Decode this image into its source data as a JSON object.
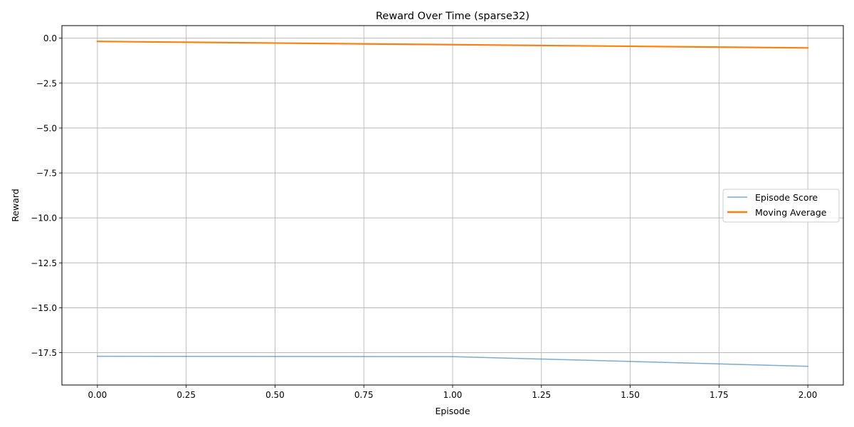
{
  "chart_data": {
    "type": "line",
    "title": "Reward Over Time (sparse32)",
    "xlabel": "Episode",
    "ylabel": "Reward",
    "xlim": [
      -0.1,
      2.1
    ],
    "ylim": [
      -19.3,
      0.7
    ],
    "x_ticks": [
      0.0,
      0.25,
      0.5,
      0.75,
      1.0,
      1.25,
      1.5,
      1.75,
      2.0
    ],
    "x_tick_labels": [
      "0.00",
      "0.25",
      "0.50",
      "0.75",
      "1.00",
      "1.25",
      "1.50",
      "1.75",
      "2.00"
    ],
    "y_ticks": [
      0.0,
      -2.5,
      -5.0,
      -7.5,
      -10.0,
      -12.5,
      -15.0,
      -17.5
    ],
    "y_tick_labels": [
      "0.0",
      "−2.5",
      "−5.0",
      "−7.5",
      "−10.0",
      "−12.5",
      "−15.0",
      "−17.5"
    ],
    "grid": true,
    "legend_position": "center-right",
    "x": [
      0,
      1,
      2
    ],
    "series": [
      {
        "name": "Episode Score",
        "values": [
          -17.7,
          -17.72,
          -18.26
        ],
        "color": "#1f77b4"
      },
      {
        "name": "Moving Average",
        "values": [
          -0.18,
          -0.36,
          -0.54
        ],
        "color": "#ff7f0e"
      }
    ]
  }
}
